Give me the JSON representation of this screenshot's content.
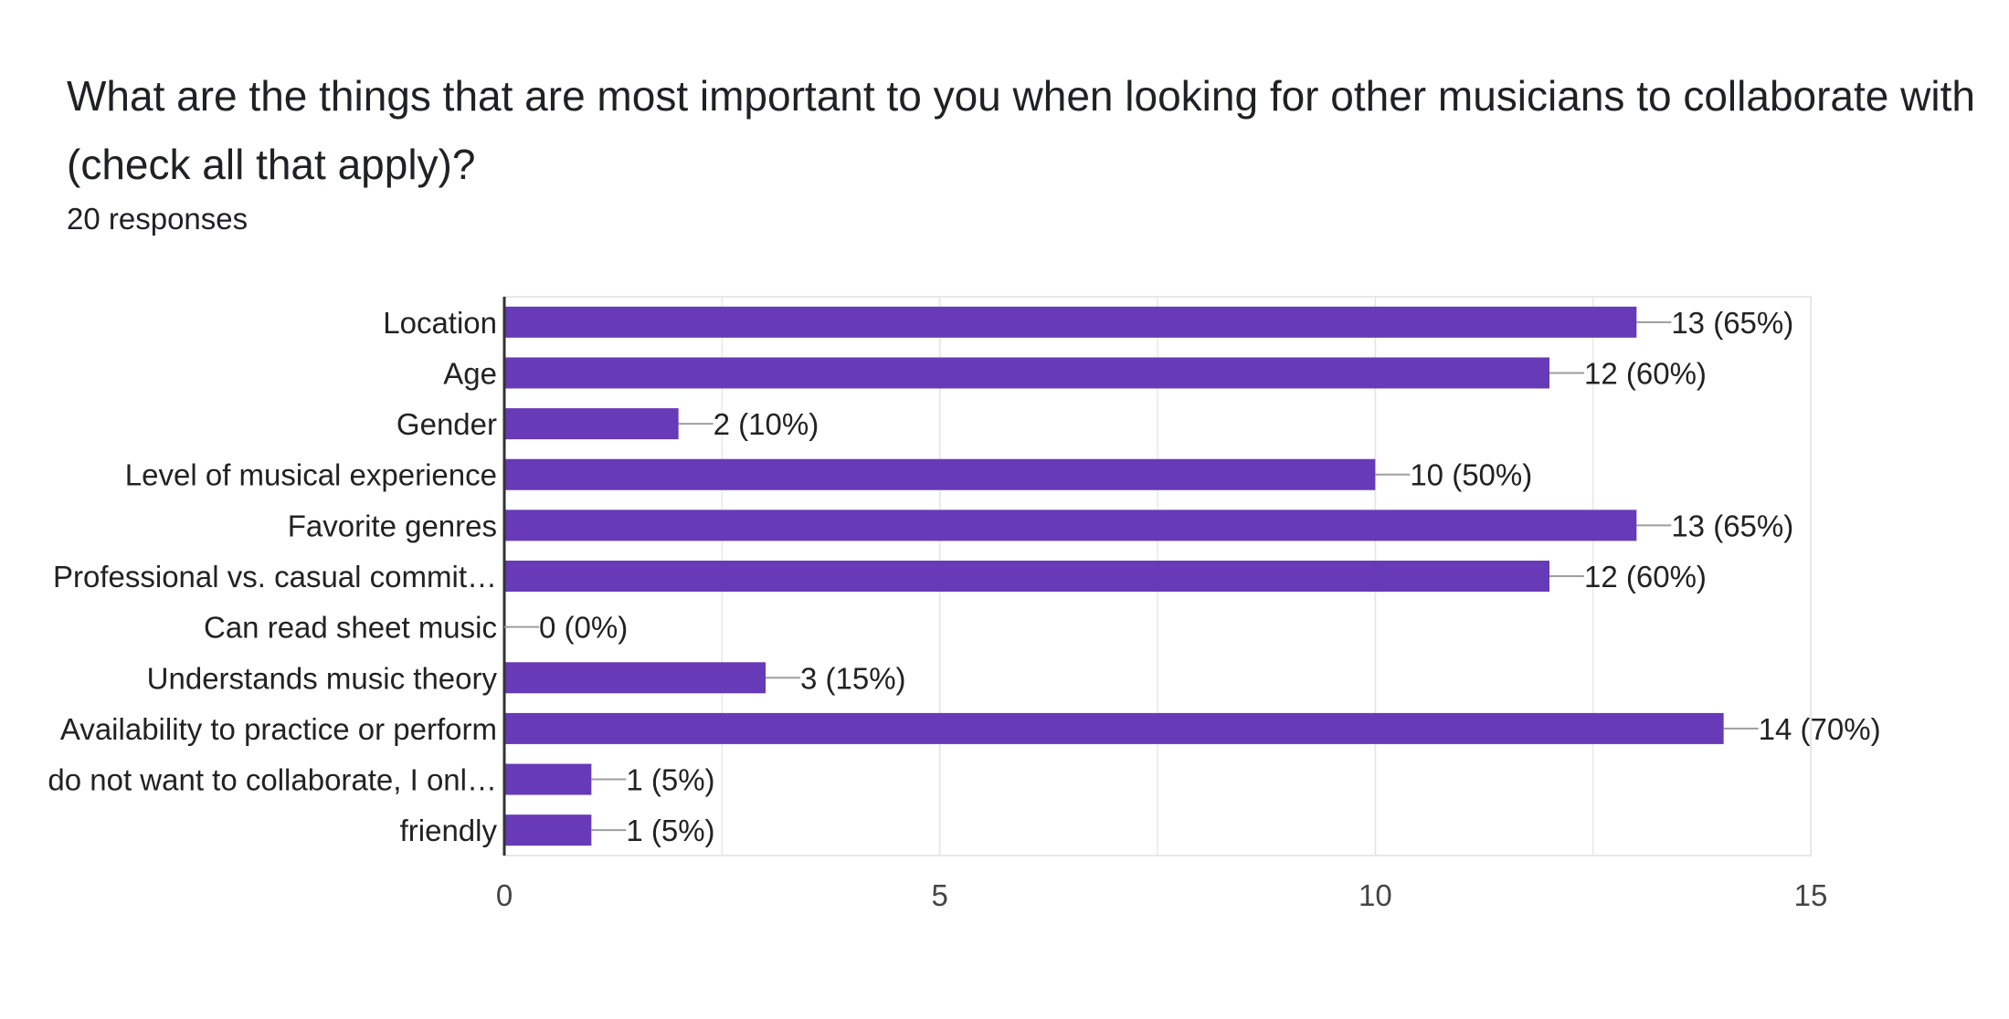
{
  "question": {
    "title": "What are the things that are most important to you when looking for other musicians to collaborate with (check all that apply)?",
    "responses": "20 responses"
  },
  "colors": {
    "bar": "#673AB7",
    "grid": "#E8E8E8",
    "axis": "#333333",
    "leader": "#9E9E9E"
  },
  "chart_data": {
    "type": "bar",
    "orientation": "horizontal",
    "categories": [
      "Location",
      "Age",
      "Gender",
      "Level of musical experience",
      "Favorite genres",
      "Professional vs. casual commit…",
      "Can read sheet music",
      "Understands music theory",
      "Availability to practice or perform",
      "do not want to collaborate, I onl…",
      "friendly"
    ],
    "values": [
      13,
      12,
      2,
      10,
      13,
      12,
      0,
      3,
      14,
      1,
      1
    ],
    "data_labels": [
      "13 (65%)",
      "12 (60%)",
      "2 (10%)",
      "10 (50%)",
      "13 (65%)",
      "12 (60%)",
      "0 (0%)",
      "3 (15%)",
      "14 (70%)",
      "1 (5%)",
      "1 (5%)"
    ],
    "xlim": [
      0,
      15
    ],
    "xticks": [
      0,
      5,
      10,
      15
    ],
    "xtick_labels": [
      "0",
      "5",
      "10",
      "15"
    ],
    "grid": true
  }
}
